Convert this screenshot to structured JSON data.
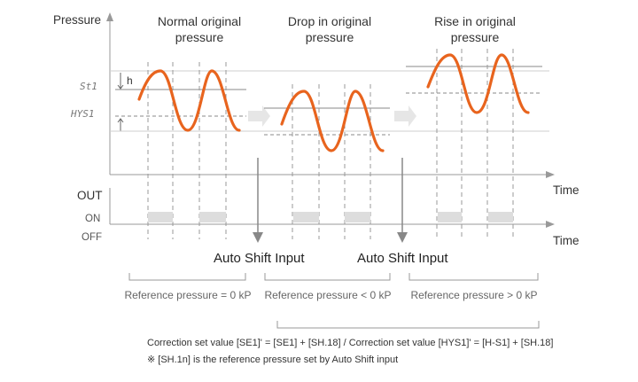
{
  "axes": {
    "pressure_label": "Pressure",
    "time_label_top": "Time",
    "out_label": "OUT",
    "on_label": "ON",
    "off_label": "OFF",
    "time_label_bottom": "Time"
  },
  "markers": {
    "st1_label": "St1",
    "hys1_label": "HYS1",
    "h_label": "h"
  },
  "panels": [
    {
      "title_line1": "Normal original",
      "title_line2": "pressure",
      "reference_text": "Reference pressure = 0 kP"
    },
    {
      "title_line1": "Drop in original",
      "title_line2": "pressure",
      "reference_text": "Reference pressure < 0 kP"
    },
    {
      "title_line1": "Rise in original",
      "title_line2": "pressure",
      "reference_text": "Reference pressure > 0 kP"
    }
  ],
  "auto_shift": {
    "label_1": "Auto Shift Input",
    "label_2": "Auto Shift Input"
  },
  "notes": {
    "correction_line": "Correction set value [SE1]' = [SE1] + [SH.18] / Correction set value [HYS1]' = [H-S1] + [SH.18]",
    "footnote": "※ [SH.1n] is the reference pressure set by Auto Shift input"
  },
  "colors": {
    "wave": "#e8641e",
    "line": "#999999",
    "arrow_fill": "#e6e6e6",
    "on_block": "#dddddd"
  }
}
